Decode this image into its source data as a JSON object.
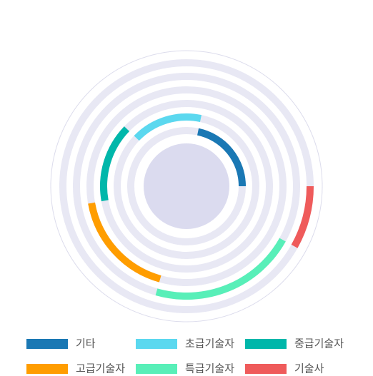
{
  "chart_data": {
    "type": "radial-bar",
    "categories": [
      "기타",
      "초급기술자",
      "중급기술자",
      "고급기술자",
      "특급기술자",
      "기술사"
    ],
    "values": [
      21.7,
      16.1,
      15.0,
      17.8,
      21.3,
      8.1
    ],
    "colors": [
      "#1a78b4",
      "#5bd8ef",
      "#00b7aa",
      "#ff9d00",
      "#58efb8",
      "#ef5b5b"
    ]
  }
}
